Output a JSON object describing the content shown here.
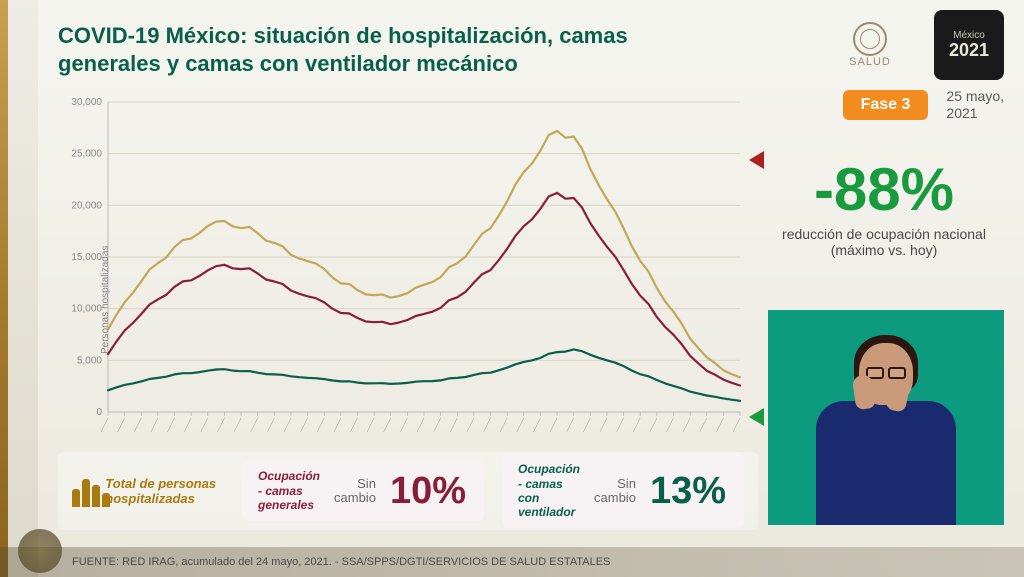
{
  "title": "COVID-19 México: situación de hospitalización, camas generales y camas con ventilador mecánico",
  "logos": {
    "salud_text": "SALUD",
    "mexico_text": "México",
    "year": "2021"
  },
  "phase": {
    "badge": "Fase 3",
    "date_line1": "25 mayo,",
    "date_line2": "2021"
  },
  "headline": {
    "value": "-88%",
    "subtitle": "reducción de ocupación nacional (máximo vs. hoy)"
  },
  "chart": {
    "type": "line",
    "ylabel": "Personas hospitalizadas",
    "ylim": [
      0,
      30000
    ],
    "ytick_step": 5000,
    "yticks": [
      "0",
      "5,000",
      "10,000",
      "15,000",
      "20,000",
      "25,000",
      "30,000"
    ],
    "xtick_count": 38,
    "grid_color": "#d8d4c6",
    "background": "transparent",
    "line_width": 2.2,
    "series": [
      {
        "name": "Total",
        "color": "#c2a857",
        "values": [
          8000,
          10500,
          12800,
          14400,
          15800,
          17000,
          18000,
          18300,
          18000,
          17300,
          16200,
          15400,
          14600,
          13700,
          12600,
          11800,
          11200,
          11200,
          11500,
          12200,
          13200,
          14400,
          16000,
          18000,
          20400,
          23000,
          25600,
          27200,
          26400,
          23800,
          20600,
          17600,
          14800,
          12000,
          9600,
          7200,
          5300,
          4000,
          3400
        ]
      },
      {
        "name": "Camas generales",
        "color": "#8a1e3a",
        "values": [
          5600,
          7800,
          9600,
          10900,
          12000,
          12900,
          13700,
          14100,
          14000,
          13400,
          12500,
          11900,
          11200,
          10500,
          9700,
          9100,
          8600,
          8600,
          8900,
          9400,
          10200,
          11100,
          12400,
          13900,
          15800,
          17800,
          19900,
          21200,
          20500,
          18500,
          16000,
          13600,
          11400,
          9200,
          7400,
          5500,
          4000,
          3100,
          2600
        ]
      },
      {
        "name": "Camas con ventilador",
        "color": "#0a5f4a",
        "values": [
          2100,
          2600,
          3000,
          3300,
          3600,
          3800,
          4000,
          4100,
          4000,
          3800,
          3600,
          3500,
          3300,
          3150,
          3000,
          2850,
          2750,
          2750,
          2820,
          2950,
          3100,
          3300,
          3550,
          3850,
          4300,
          4800,
          5300,
          5800,
          6000,
          5600,
          5000,
          4400,
          3700,
          3100,
          2500,
          2000,
          1600,
          1300,
          1100
        ]
      }
    ]
  },
  "bottom": {
    "legend_label": "Total de personas hospitalizadas",
    "generales": {
      "label": "Ocupación - camas generales",
      "sub_line1": "Sin",
      "sub_line2": "cambio",
      "pct": "10%"
    },
    "ventilador": {
      "label": "Ocupación - camas con ventilador",
      "sub_line1": "Sin",
      "sub_line2": "cambio",
      "pct": "13%"
    }
  },
  "footer": {
    "source": "FUENTE: RED IRAG, acumulado del 24 mayo, 2021. -  SSA/SPPS/DGTI/SERVICIOS DE SALUD ESTATALES"
  }
}
